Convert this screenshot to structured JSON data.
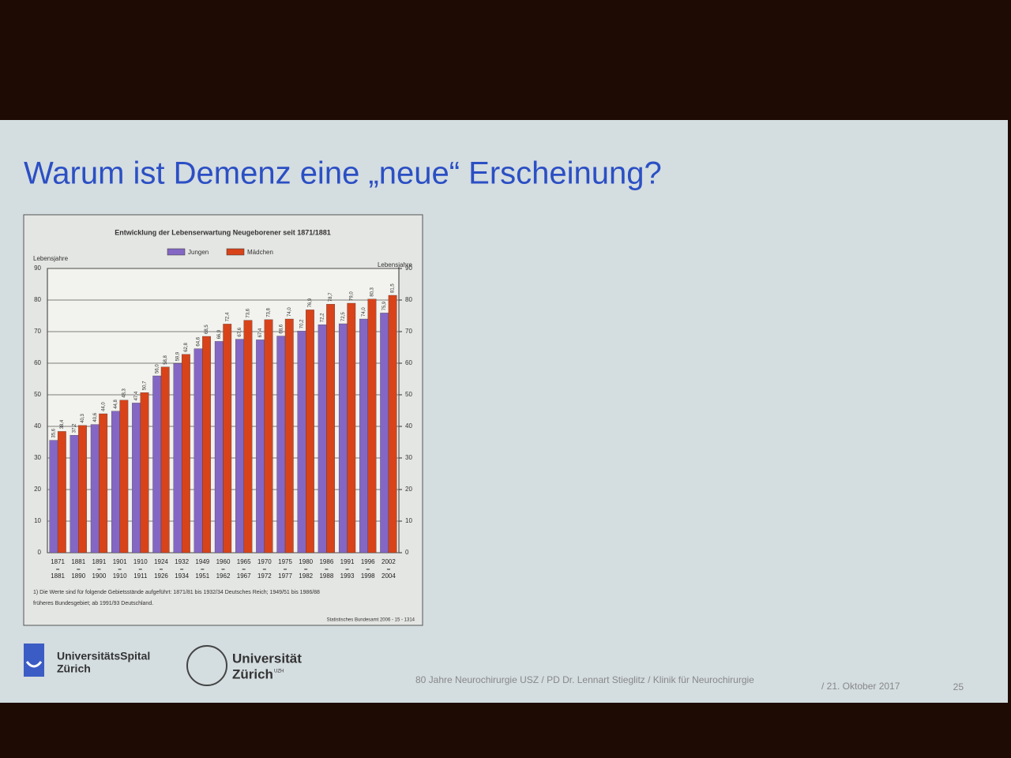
{
  "slide": {
    "title": "Warum ist Demenz eine „neue“ Erscheinung?",
    "logo_usz": [
      "UniversitätsSpital",
      "Zürich"
    ],
    "logo_uzh": [
      "Universität",
      "Zürich"
    ],
    "logo_uzh_sup": "UZH",
    "footer": "80 Jahre Neurochirurgie USZ / PD Dr. Lennart Stieglitz / Klinik für Neurochirurgie",
    "date": "/ 21. Oktober 2017",
    "page": "25"
  },
  "chart_data": {
    "type": "bar",
    "title": "Entwicklung der Lebenserwartung Neugeborener seit 1871/1881",
    "ylabel": "Lebensjahre",
    "y2label": "Lebensjahre",
    "categories": [
      [
        "1871",
        "1881"
      ],
      [
        "1881",
        "1890"
      ],
      [
        "1891",
        "1900"
      ],
      [
        "1901",
        "1910"
      ],
      [
        "1910",
        "1911"
      ],
      [
        "1924",
        "1926"
      ],
      [
        "1932",
        "1934"
      ],
      [
        "1949",
        "1951"
      ],
      [
        "1960",
        "1962"
      ],
      [
        "1965",
        "1967"
      ],
      [
        "1970",
        "1972"
      ],
      [
        "1975",
        "1977"
      ],
      [
        "1980",
        "1982"
      ],
      [
        "1986",
        "1988"
      ],
      [
        "1991",
        "1993"
      ],
      [
        "1996",
        "1998"
      ],
      [
        "2002",
        "2004"
      ]
    ],
    "series": [
      {
        "name": "Jungen",
        "color": "#8467c4",
        "values": [
          35.6,
          37.2,
          40.6,
          44.8,
          47.4,
          56.0,
          59.9,
          64.6,
          66.9,
          67.6,
          67.4,
          68.6,
          70.2,
          72.2,
          72.5,
          74.0,
          75.9
        ],
        "value_labels": [
          "35,6",
          "37,2",
          "40,6",
          "44,8",
          "47,4",
          "56,0",
          "59,9",
          "64,6",
          "66,9",
          "67,6",
          "67,4",
          "68,6",
          "70,2",
          "72,2",
          "72,5",
          "74,0",
          "75,9"
        ]
      },
      {
        "name": "Mädchen",
        "color": "#d8431a",
        "values": [
          38.4,
          40.3,
          44.0,
          48.3,
          50.7,
          58.8,
          62.8,
          68.5,
          72.4,
          73.6,
          73.8,
          74.0,
          76.9,
          78.7,
          79.0,
          80.3,
          81.5
        ],
        "value_labels": [
          "38,4",
          "40,3",
          "44,0",
          "48,3",
          "50,7",
          "58,8",
          "62,8",
          "68,5",
          "72,4",
          "73,6",
          "73,8",
          "74,0",
          "76,9",
          "78,7",
          "79,0",
          "80,3",
          "81,5"
        ]
      }
    ],
    "ylim": [
      0,
      90
    ],
    "yticks": [
      0,
      10,
      20,
      30,
      40,
      50,
      60,
      70,
      80,
      90
    ],
    "y2lim": [
      0,
      90
    ],
    "y2ticks": [
      0,
      10,
      20,
      30,
      40,
      50,
      60,
      70,
      80,
      90
    ],
    "grid": true,
    "footnote": [
      "1) Die Werte sind für folgende Gebietsstände aufgeführt: 1871/81 bis 1932/34 Deutsches Reich; 1949/51 bis 1986/88",
      "früheres Bundesgebiet; ab 1991/93 Deutschland."
    ],
    "source": "Statistisches Bundesamt 2006 - 15 - 1314"
  }
}
